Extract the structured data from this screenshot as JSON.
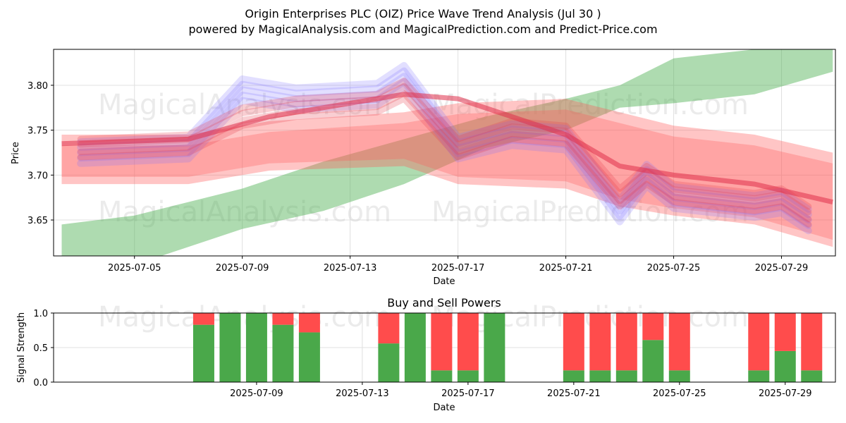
{
  "chart_data": [
    {
      "type": "area",
      "title": "Origin Enterprises PLC (OIZ) Price Wave Trend Analysis (Jul 30 )",
      "subtitle": "powered by MagicalAnalysis.com and MagicalPrediction.com and Predict-Price.com",
      "xlabel": "Date",
      "ylabel": "Price",
      "xlim": [
        "2025-07-02",
        "2025-07-31"
      ],
      "ylim": [
        3.61,
        3.84
      ],
      "x_ticks": [
        "2025-07-05",
        "2025-07-09",
        "2025-07-13",
        "2025-07-17",
        "2025-07-21",
        "2025-07-25",
        "2025-07-29"
      ],
      "y_ticks": [
        "3.65",
        "3.70",
        "3.75",
        "3.80"
      ],
      "grid": true,
      "watermarks": [
        "MagicalAnalysis.com",
        "MagicalPrediction.com"
      ],
      "series": [
        {
          "name": "green trend band",
          "color": "#4caf50",
          "x": [
            "2025-07-02.3",
            "2025-07-05",
            "2025-07-09",
            "2025-07-12",
            "2025-07-15",
            "2025-07-18",
            "2025-07-21",
            "2025-07-23",
            "2025-07-25",
            "2025-07-28",
            "2025-07-30.9"
          ],
          "upper": [
            3.645,
            3.655,
            3.685,
            3.715,
            3.74,
            3.765,
            3.785,
            3.8,
            3.83,
            3.84,
            3.84
          ],
          "lower": [
            3.6,
            3.6,
            3.64,
            3.66,
            3.69,
            3.73,
            3.75,
            3.775,
            3.78,
            3.79,
            3.815
          ]
        },
        {
          "name": "red wide band",
          "color": "#ff5a5a",
          "x": [
            "2025-07-02.3",
            "2025-07-07",
            "2025-07-10",
            "2025-07-15",
            "2025-07-17",
            "2025-07-21",
            "2025-07-23",
            "2025-07-25",
            "2025-07-28",
            "2025-07-30.9"
          ],
          "upper": [
            3.745,
            3.745,
            3.76,
            3.77,
            3.78,
            3.785,
            3.77,
            3.755,
            3.745,
            3.725
          ],
          "lower": [
            3.69,
            3.69,
            3.705,
            3.71,
            3.69,
            3.685,
            3.665,
            3.655,
            3.645,
            3.62
          ]
        },
        {
          "name": "purple wave",
          "color": "#7a6cff",
          "x": [
            "2025-07-03",
            "2025-07-07",
            "2025-07-09",
            "2025-07-11",
            "2025-07-14",
            "2025-07-15",
            "2025-07-17",
            "2025-07-19",
            "2025-07-21",
            "2025-07-23",
            "2025-07-24",
            "2025-07-25",
            "2025-07-28",
            "2025-07-29",
            "2025-07-30"
          ],
          "values": [
            3.725,
            3.73,
            3.795,
            3.785,
            3.79,
            3.81,
            3.73,
            3.745,
            3.74,
            3.66,
            3.7,
            3.675,
            3.665,
            3.67,
            3.65
          ]
        },
        {
          "name": "red wave",
          "color": "#e83a4a",
          "x": [
            "2025-07-03",
            "2025-07-07",
            "2025-07-09",
            "2025-07-11",
            "2025-07-14",
            "2025-07-15",
            "2025-07-17",
            "2025-07-19",
            "2025-07-21",
            "2025-07-23",
            "2025-07-24",
            "2025-07-25",
            "2025-07-28",
            "2025-07-29",
            "2025-07-30"
          ],
          "values": [
            3.73,
            3.735,
            3.765,
            3.775,
            3.78,
            3.795,
            3.73,
            3.75,
            3.745,
            3.675,
            3.7,
            3.68,
            3.67,
            3.675,
            3.655
          ]
        },
        {
          "name": "red trend line",
          "color": "#e0304a",
          "x": [
            "2025-07-02.3",
            "2025-07-07",
            "2025-07-10",
            "2025-07-15",
            "2025-07-17",
            "2025-07-21",
            "2025-07-23",
            "2025-07-25",
            "2025-07-28",
            "2025-07-30.9"
          ],
          "values": [
            3.735,
            3.74,
            3.765,
            3.79,
            3.785,
            3.745,
            3.71,
            3.7,
            3.69,
            3.67
          ]
        }
      ]
    },
    {
      "type": "bar",
      "stacked": true,
      "title": "Buy and Sell Powers",
      "xlabel": "Date",
      "ylabel": "Signal Strength",
      "ylim": [
        0,
        1.0
      ],
      "y_ticks": [
        "0.0",
        "0.5",
        "1.0"
      ],
      "x_ticks": [
        "2025-07-09",
        "2025-07-13",
        "2025-07-17",
        "2025-07-21",
        "2025-07-25",
        "2025-07-29"
      ],
      "categories": [
        "2025-07-07",
        "2025-07-08",
        "2025-07-09",
        "2025-07-10",
        "2025-07-11",
        "2025-07-14",
        "2025-07-15",
        "2025-07-16",
        "2025-07-17",
        "2025-07-18",
        "2025-07-21",
        "2025-07-22",
        "2025-07-23",
        "2025-07-24",
        "2025-07-25",
        "2025-07-28",
        "2025-07-29",
        "2025-07-30"
      ],
      "series": [
        {
          "name": "Buy",
          "color": "#4aa84a",
          "values": [
            0.83,
            1.0,
            1.0,
            0.83,
            0.72,
            0.56,
            1.0,
            0.17,
            0.17,
            1.0,
            0.17,
            0.17,
            0.17,
            0.61,
            0.17,
            0.17,
            0.45,
            0.17
          ]
        },
        {
          "name": "Sell",
          "color": "#ff4c4c",
          "values": [
            0.17,
            0.0,
            0.0,
            0.17,
            0.28,
            0.44,
            0.0,
            0.83,
            0.83,
            0.0,
            0.83,
            0.83,
            0.83,
            0.39,
            0.83,
            0.83,
            0.55,
            0.83
          ]
        }
      ]
    }
  ]
}
